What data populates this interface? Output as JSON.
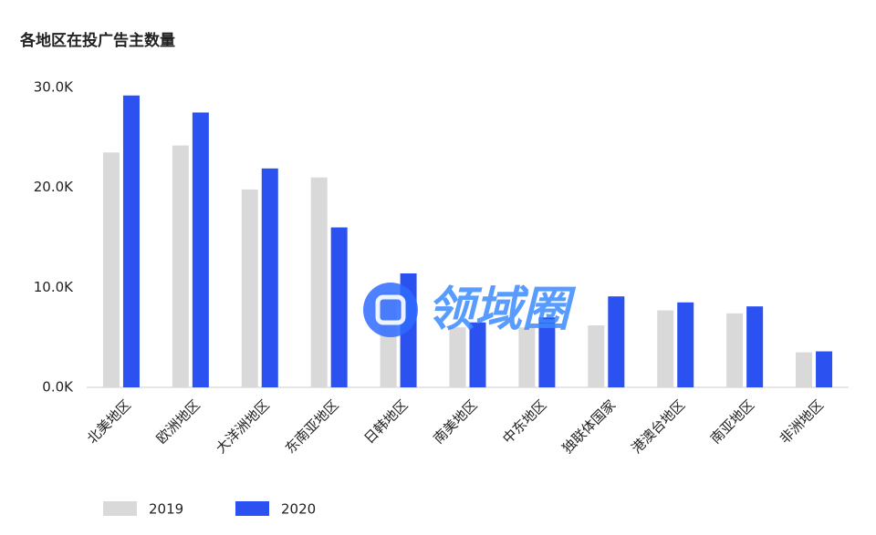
{
  "chart_data": {
    "type": "bar",
    "title": "各地区在投广告主数量",
    "categories": [
      "北美地区",
      "欧洲地区",
      "大洋洲地区",
      "东南亚地区",
      "日韩地区",
      "南美地区",
      "中东地区",
      "独联体国家",
      "港澳台地区",
      "南亚地区",
      "非洲地区"
    ],
    "series": [
      {
        "name": "2019",
        "color": "#d9d9d9",
        "values": [
          23500,
          24200,
          19800,
          21000,
          9500,
          6000,
          6000,
          6200,
          7700,
          7400,
          3500
        ]
      },
      {
        "name": "2020",
        "color": "#2b52f0",
        "values": [
          29200,
          27500,
          21900,
          16000,
          11400,
          6500,
          7000,
          9100,
          8500,
          8100,
          3600
        ]
      }
    ],
    "ylim": [
      0,
      30000
    ],
    "yticks": [
      {
        "value": 0,
        "label": "0.0K"
      },
      {
        "value": 10000,
        "label": "10.0K"
      },
      {
        "value": 20000,
        "label": "20.0K"
      },
      {
        "value": 30000,
        "label": "30.0K"
      }
    ],
    "grid": false,
    "legend": "bottom-left",
    "watermark": "领域圈"
  }
}
